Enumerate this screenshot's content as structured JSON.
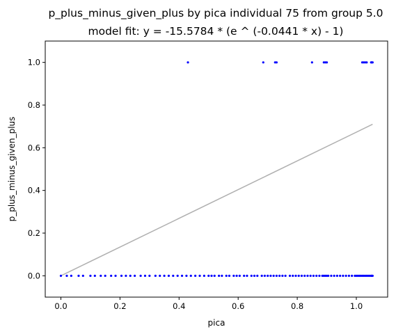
{
  "chart_data": {
    "type": "scatter",
    "title": "p_plus_minus_given_plus by pica individual 75 from group 5.0",
    "subtitle": "model fit: y = -15.5784 * (e ^ (-0.0441 * x) - 1)",
    "xlabel": "pica",
    "ylabel": "p_plus_minus_given_plus",
    "xlim": [
      -0.053,
      1.106
    ],
    "ylim": [
      -0.1,
      1.1
    ],
    "xticks": [
      0.0,
      0.2,
      0.4,
      0.6,
      0.8,
      1.0
    ],
    "xtick_labels": [
      "0.0",
      "0.2",
      "0.4",
      "0.6",
      "0.8",
      "1.0"
    ],
    "yticks": [
      0.0,
      0.2,
      0.4,
      0.6,
      0.8,
      1.0
    ],
    "ytick_labels": [
      "0.0",
      "0.2",
      "0.4",
      "0.6",
      "0.8",
      "1.0"
    ],
    "grid": false,
    "colors": {
      "points": "#0000ff",
      "fit_line": "#b0b0b0",
      "axes": "#000000"
    },
    "series": [
      {
        "kind": "scatter",
        "x": [
          0.0,
          0.02,
          0.035,
          0.06,
          0.075,
          0.1,
          0.115,
          0.135,
          0.15,
          0.17,
          0.185,
          0.205,
          0.22,
          0.235,
          0.25,
          0.27,
          0.285,
          0.3,
          0.32,
          0.335,
          0.35,
          0.365,
          0.38,
          0.395,
          0.41,
          0.425,
          0.44,
          0.455,
          0.47,
          0.485,
          0.5,
          0.51,
          0.52,
          0.535,
          0.545,
          0.56,
          0.57,
          0.585,
          0.595,
          0.605,
          0.62,
          0.63,
          0.645,
          0.655,
          0.665,
          0.68,
          0.69,
          0.7,
          0.71,
          0.72,
          0.73,
          0.74,
          0.75,
          0.76,
          0.775,
          0.785,
          0.795,
          0.805,
          0.815,
          0.825,
          0.835,
          0.845,
          0.855,
          0.865,
          0.875,
          0.885,
          0.89,
          0.895,
          0.9,
          0.905,
          0.915,
          0.925,
          0.935,
          0.945,
          0.955,
          0.965,
          0.975,
          0.985,
          0.995,
          1.0,
          1.005,
          1.01,
          1.015,
          1.02,
          1.025,
          1.03,
          1.035,
          1.04,
          1.045,
          1.05,
          1.052,
          1.055,
          0.43,
          0.685,
          0.725,
          0.73,
          0.85,
          0.89,
          0.895,
          0.9,
          1.02,
          1.025,
          1.03,
          1.035,
          1.05,
          1.052,
          1.055
        ],
        "y": [
          0,
          0,
          0,
          0,
          0,
          0,
          0,
          0,
          0,
          0,
          0,
          0,
          0,
          0,
          0,
          0,
          0,
          0,
          0,
          0,
          0,
          0,
          0,
          0,
          0,
          0,
          0,
          0,
          0,
          0,
          0,
          0,
          0,
          0,
          0,
          0,
          0,
          0,
          0,
          0,
          0,
          0,
          0,
          0,
          0,
          0,
          0,
          0,
          0,
          0,
          0,
          0,
          0,
          0,
          0,
          0,
          0,
          0,
          0,
          0,
          0,
          0,
          0,
          0,
          0,
          0,
          0,
          0,
          0,
          0,
          0,
          0,
          0,
          0,
          0,
          0,
          0,
          0,
          0,
          0,
          0,
          0,
          0,
          0,
          0,
          0,
          0,
          0,
          0,
          0,
          0,
          0,
          1,
          1,
          1,
          1,
          1,
          1,
          1,
          1,
          1,
          1,
          1,
          1,
          1,
          1,
          1
        ]
      },
      {
        "kind": "line",
        "x": [
          0.0,
          1.055
        ],
        "y": [
          0.0,
          0.71
        ]
      }
    ]
  }
}
